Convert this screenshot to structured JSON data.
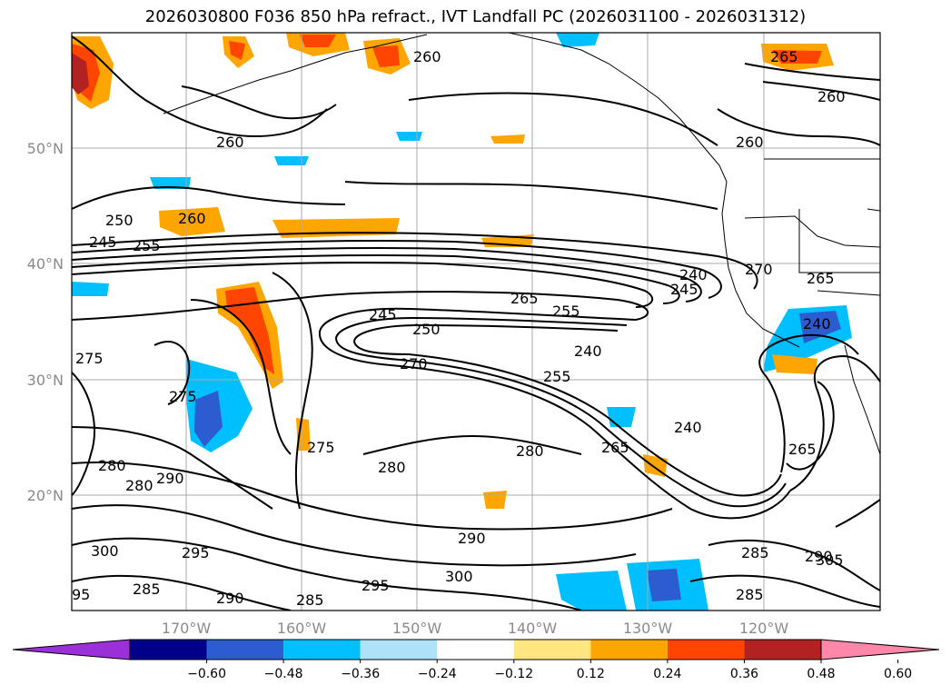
{
  "title": "2026030800 F036 850 hPa refract., IVT Landfall PC (2026031100 - 2026031312)",
  "lat_labels": [
    "50°N",
    "40°N",
    "30°N",
    "20°N"
  ],
  "lon_labels": [
    "170°W",
    "160°W",
    "150°W",
    "140°W",
    "130°W",
    "120°W"
  ],
  "contour_labels": [
    {
      "text": "260"
    },
    {
      "text": "265"
    },
    {
      "text": "260"
    },
    {
      "text": "260"
    },
    {
      "text": "260"
    },
    {
      "text": "260"
    },
    {
      "text": "250"
    },
    {
      "text": "245"
    },
    {
      "text": "255"
    },
    {
      "text": "245"
    },
    {
      "text": "265"
    },
    {
      "text": "255"
    },
    {
      "text": "250"
    },
    {
      "text": "240"
    },
    {
      "text": "270"
    },
    {
      "text": "255"
    },
    {
      "text": "240"
    },
    {
      "text": "245"
    },
    {
      "text": "270"
    },
    {
      "text": "265"
    },
    {
      "text": "240"
    },
    {
      "text": "275"
    },
    {
      "text": "275"
    },
    {
      "text": "275"
    },
    {
      "text": "280"
    },
    {
      "text": "280"
    },
    {
      "text": "290"
    },
    {
      "text": "280"
    },
    {
      "text": "280"
    },
    {
      "text": "265"
    },
    {
      "text": "265"
    },
    {
      "text": "240"
    },
    {
      "text": "300"
    },
    {
      "text": "295"
    },
    {
      "text": "285"
    },
    {
      "text": "290"
    },
    {
      "text": "285"
    },
    {
      "text": "295"
    },
    {
      "text": "300"
    },
    {
      "text": "290"
    },
    {
      "text": "285"
    },
    {
      "text": "285"
    },
    {
      "text": "290"
    },
    {
      "text": "305"
    },
    {
      "text": "95"
    }
  ],
  "colorbar": {
    "colors": [
      "#9b30d8",
      "#00008b",
      "#2d5bd0",
      "#00bfff",
      "#ade2f8",
      "#ffffff",
      "#ffe680",
      "#ffa500",
      "#ff4500",
      "#b22222",
      "#ff88aa"
    ],
    "tick_labels": [
      "-0.60",
      "-0.48",
      "-0.36",
      "-0.24",
      "-0.12",
      "0.12",
      "0.24",
      "0.36",
      "0.48",
      "0.60"
    ]
  }
}
